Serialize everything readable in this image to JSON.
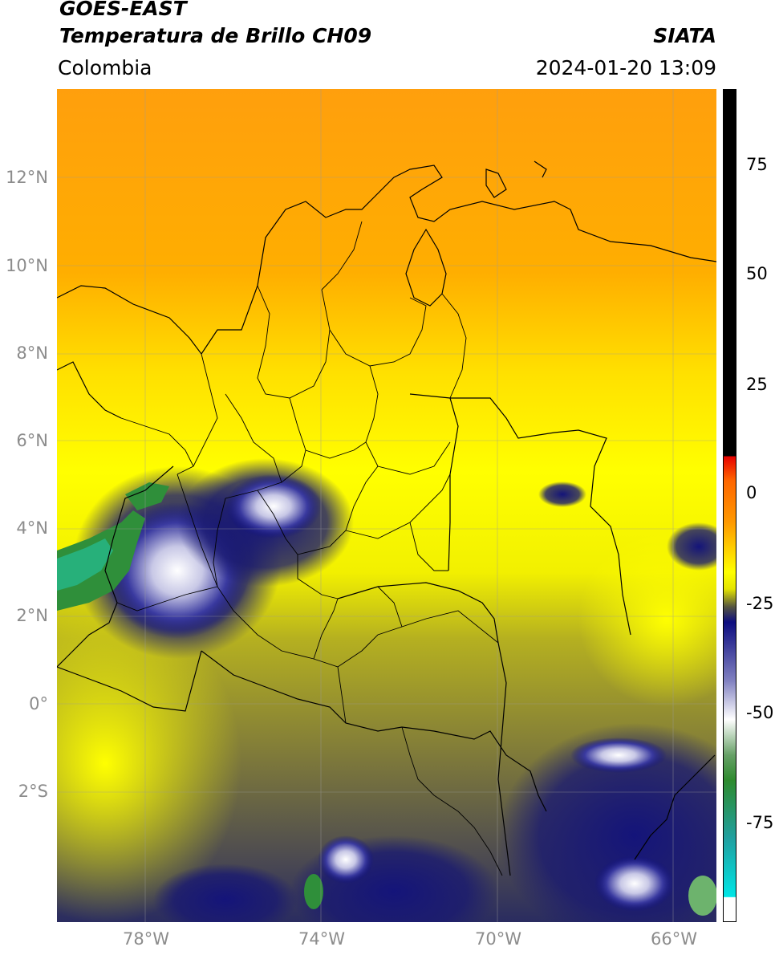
{
  "header": {
    "title_line1": "GOES-EAST",
    "title_line2": "Temperatura de Brillo CH09",
    "region": "Colombia",
    "organization": "SIATA",
    "timestamp": "2024-01-20 13:09"
  },
  "map": {
    "lat_ticks": [
      "12°N",
      "10°N",
      "8°N",
      "6°N",
      "4°N",
      "2°N",
      "0°",
      "2°S"
    ],
    "lon_ticks": [
      "78°W",
      "74°W",
      "70°W",
      "66°W"
    ],
    "lon_range": [
      -80,
      -65
    ],
    "lat_range": [
      -5,
      14
    ]
  },
  "colorbar": {
    "ticks": [
      "75",
      "50",
      "25",
      "0",
      "-25",
      "-50",
      "-75"
    ],
    "range": [
      -95,
      90
    ],
    "colors": {
      "black": "#000000",
      "red": "#e60000",
      "orange": "#ff9900",
      "yellow": "#ffff00",
      "olive": "#b3b31a",
      "gray": "#555540",
      "navy": "#0d0d80",
      "white": "#ffffff",
      "green": "#2e8b2e",
      "cyan": "#00e6e6"
    }
  }
}
